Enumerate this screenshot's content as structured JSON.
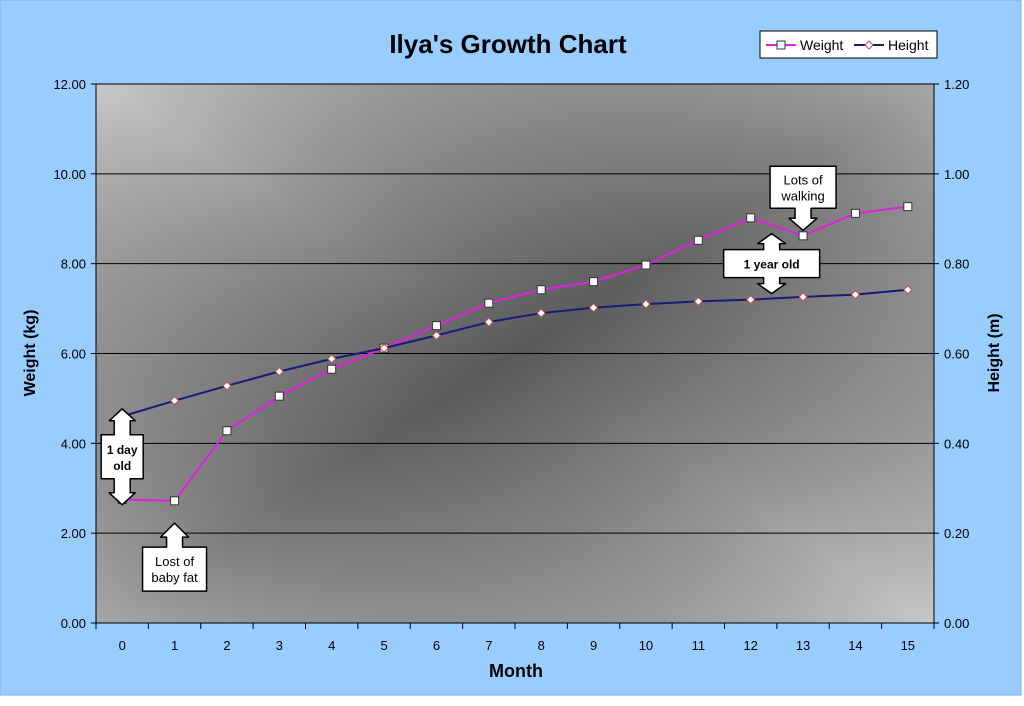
{
  "chart_data": {
    "type": "line",
    "title": "Ilya's Growth Chart",
    "xlabel": "Month",
    "ylabel_left": "Weight (kg)",
    "ylabel_right": "Height (m)",
    "x": [
      0,
      1,
      2,
      3,
      4,
      5,
      6,
      7,
      8,
      9,
      10,
      11,
      12,
      13,
      14,
      15
    ],
    "x_tick_labels": [
      "0",
      "1",
      "2",
      "3",
      "4",
      "5",
      "6",
      "7",
      "8",
      "9",
      "10",
      "11",
      "12",
      "13",
      "14",
      "15"
    ],
    "y_left_lim": [
      0,
      12
    ],
    "y_left_tick_labels": [
      "0.00",
      "2.00",
      "4.00",
      "6.00",
      "8.00",
      "10.00",
      "12.00"
    ],
    "y_right_lim": [
      0,
      1.2
    ],
    "y_right_tick_labels": [
      "0.00",
      "0.20",
      "0.40",
      "0.60",
      "0.80",
      "1.00",
      "1.20"
    ],
    "grid": true,
    "legend_position": "top-right",
    "series": [
      {
        "name": "Weight",
        "axis": "left",
        "color": "#e020e0",
        "marker": "square",
        "values": [
          2.75,
          2.72,
          4.28,
          5.05,
          5.65,
          6.12,
          6.62,
          7.12,
          7.42,
          7.6,
          7.97,
          8.52,
          9.02,
          8.62,
          9.12,
          9.27
        ]
      },
      {
        "name": "Height",
        "axis": "right",
        "color": "#1a1a7a",
        "marker": "diamond",
        "values": [
          0.46,
          0.495,
          0.528,
          0.56,
          0.588,
          0.612,
          0.64,
          0.67,
          0.69,
          0.702,
          0.71,
          0.716,
          0.72,
          0.726,
          0.731,
          0.742
        ]
      }
    ],
    "annotations": [
      {
        "lines": [
          "1 day",
          "old"
        ],
        "bold": true,
        "x": 0,
        "y": 3.7
      },
      {
        "lines": [
          "Lost of",
          "baby fat"
        ],
        "bold": false,
        "x": 1,
        "y": 1.2
      },
      {
        "lines": [
          "1 year old"
        ],
        "bold": true,
        "x": 12.4,
        "y": 8.0
      },
      {
        "lines": [
          "Lots of",
          "walking"
        ],
        "bold": false,
        "x": 13,
        "y": 9.7
      }
    ],
    "colors": {
      "outer_background": "#99ccff",
      "plot_background_edge": "#c8c8c8",
      "plot_background_center": "#5a5a5a"
    }
  }
}
